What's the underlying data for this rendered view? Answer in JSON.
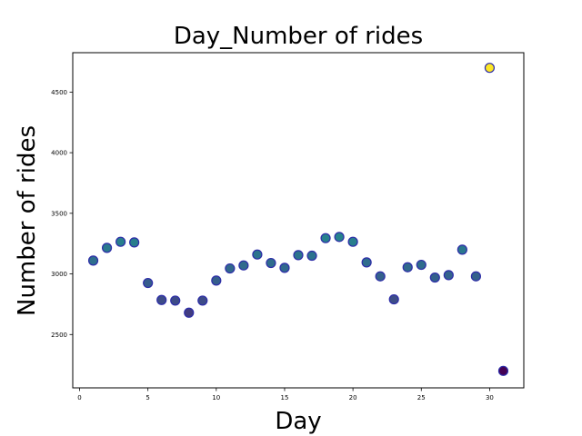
{
  "chart_data": {
    "type": "scatter",
    "title": "Day_Number of rides",
    "xlabel": "Day",
    "ylabel": "Number of rides",
    "xlim": [
      -0.5,
      32.5
    ],
    "ylim": [
      2060,
      4825
    ],
    "xticks": [
      0,
      5,
      10,
      15,
      20,
      25,
      30
    ],
    "yticks": [
      2500,
      3000,
      3500,
      4000,
      4500
    ],
    "grid": false,
    "legend": "none",
    "colormap": "viridis",
    "marker_edge_color": "#2d2da8",
    "points": [
      {
        "x": 1,
        "y": 3110
      },
      {
        "x": 2,
        "y": 3215
      },
      {
        "x": 3,
        "y": 3265
      },
      {
        "x": 4,
        "y": 3260
      },
      {
        "x": 5,
        "y": 2925
      },
      {
        "x": 6,
        "y": 2785
      },
      {
        "x": 7,
        "y": 2780
      },
      {
        "x": 8,
        "y": 2680
      },
      {
        "x": 9,
        "y": 2780
      },
      {
        "x": 10,
        "y": 2945
      },
      {
        "x": 11,
        "y": 3045
      },
      {
        "x": 12,
        "y": 3070
      },
      {
        "x": 13,
        "y": 3160
      },
      {
        "x": 14,
        "y": 3090
      },
      {
        "x": 15,
        "y": 3050
      },
      {
        "x": 16,
        "y": 3155
      },
      {
        "x": 17,
        "y": 3150
      },
      {
        "x": 18,
        "y": 3295
      },
      {
        "x": 19,
        "y": 3305
      },
      {
        "x": 20,
        "y": 3265
      },
      {
        "x": 21,
        "y": 3095
      },
      {
        "x": 22,
        "y": 2980
      },
      {
        "x": 23,
        "y": 2790
      },
      {
        "x": 24,
        "y": 3055
      },
      {
        "x": 25,
        "y": 3075
      },
      {
        "x": 26,
        "y": 2970
      },
      {
        "x": 27,
        "y": 2990
      },
      {
        "x": 28,
        "y": 3200
      },
      {
        "x": 29,
        "y": 2980
      },
      {
        "x": 30,
        "y": 4700
      },
      {
        "x": 31,
        "y": 2200
      }
    ]
  }
}
